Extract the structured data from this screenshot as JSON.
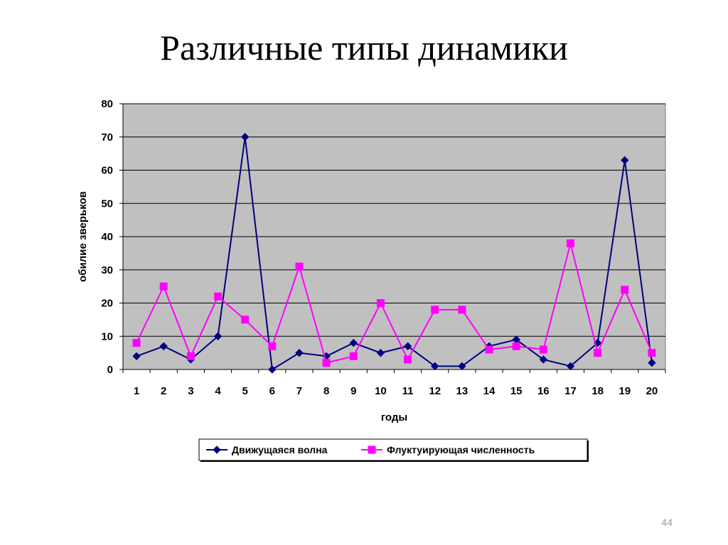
{
  "slide": {
    "title": "Различные типы динамики",
    "page_number": "44"
  },
  "chart_data": {
    "type": "line",
    "x": [
      1,
      2,
      3,
      4,
      5,
      6,
      7,
      8,
      9,
      10,
      11,
      12,
      13,
      14,
      15,
      16,
      17,
      18,
      19,
      20
    ],
    "xlabel": "годы",
    "ylabel": "обилие зверьков",
    "ylim": [
      0,
      80
    ],
    "yticks": [
      0,
      10,
      20,
      30,
      40,
      50,
      60,
      70,
      80
    ],
    "grid": true,
    "plot_background": "#c0c0c0",
    "legend_position": "bottom",
    "series": [
      {
        "name": "Движущаяся волна",
        "color": "#000080",
        "marker": "diamond",
        "values": [
          4,
          7,
          3,
          10,
          70,
          0,
          5,
          4,
          8,
          5,
          7,
          1,
          1,
          7,
          9,
          3,
          1,
          8,
          63,
          2
        ]
      },
      {
        "name": "Флуктуирующая численность",
        "color": "#ff00ff",
        "marker": "square",
        "values": [
          8,
          25,
          4,
          22,
          15,
          7,
          31,
          2,
          4,
          20,
          3,
          18,
          18,
          6,
          7,
          6,
          38,
          5,
          24,
          5
        ]
      }
    ]
  }
}
